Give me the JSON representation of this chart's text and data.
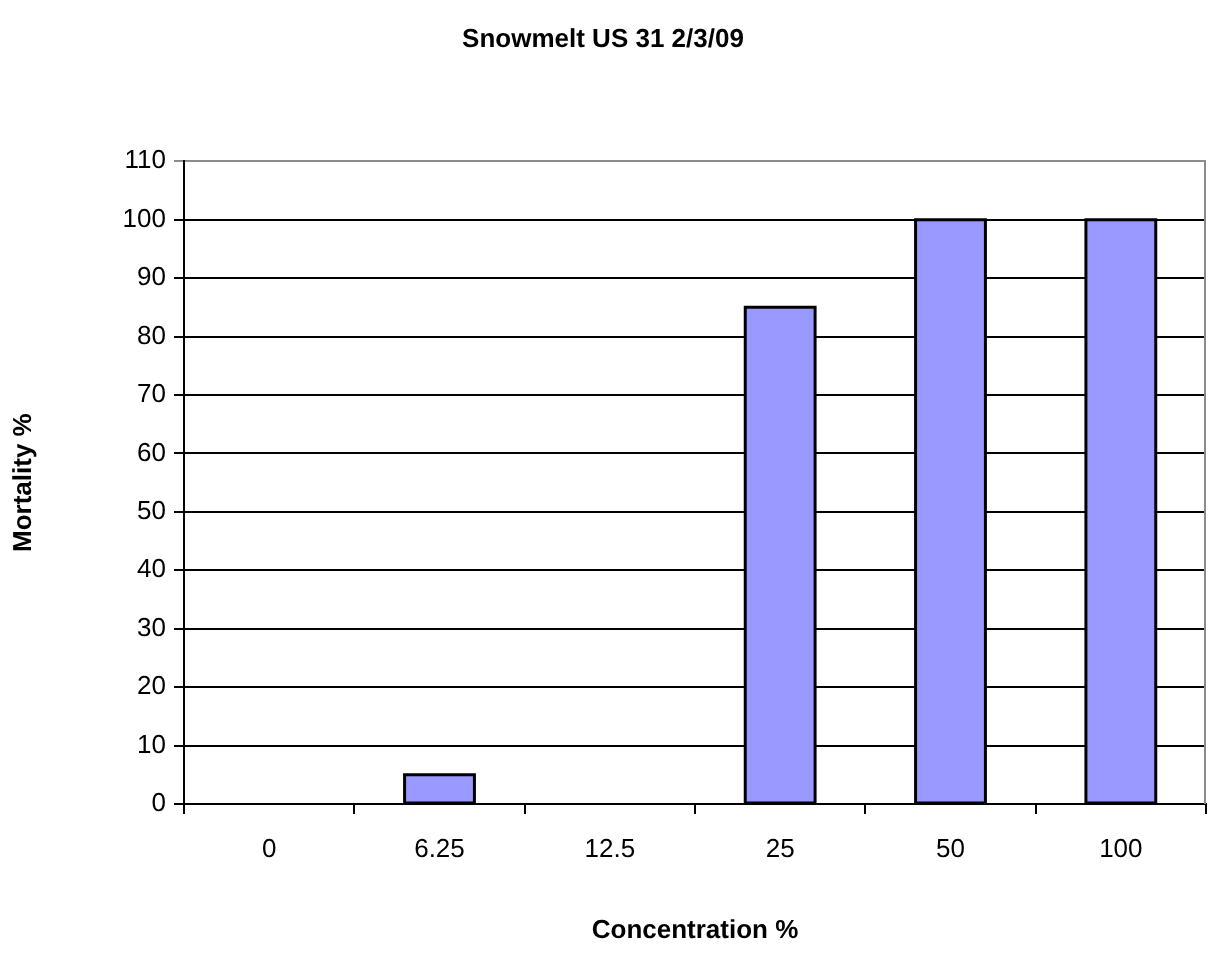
{
  "chart_data": {
    "type": "bar",
    "title": "Snowmelt US 31 2/3/09",
    "xlabel": "Concentration %",
    "ylabel": "Mortality %",
    "categories": [
      "0",
      "6.25",
      "12.5",
      "25",
      "50",
      "100"
    ],
    "values": [
      0,
      5,
      0,
      85,
      100,
      100
    ],
    "color": "#9999ff",
    "ylim": [
      0,
      110
    ],
    "yticks": [
      0,
      10,
      20,
      30,
      40,
      50,
      60,
      70,
      80,
      90,
      100,
      110
    ],
    "grid": "y"
  }
}
